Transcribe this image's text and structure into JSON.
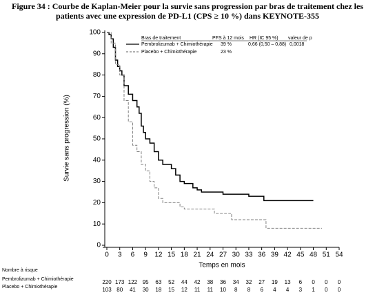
{
  "chart_data": {
    "type": "step",
    "title": [
      "Figure 34 : Courbe de Kaplan-Meier pour la survie sans progression par bras de traitement chez les",
      "patients avec une expression de PD-L1 (CPS ≥ 10 %) dans KEYNOTE-355"
    ],
    "x_label": "Temps en mois",
    "y_label": "Survie sans progression (%)",
    "xlim": [
      0,
      54
    ],
    "xticks": [
      0,
      3,
      6,
      9,
      12,
      15,
      18,
      21,
      24,
      27,
      30,
      33,
      36,
      39,
      42,
      45,
      48,
      51,
      54
    ],
    "ylim": [
      0,
      100
    ],
    "yticks": [
      0,
      10,
      20,
      30,
      40,
      50,
      60,
      70,
      80,
      90,
      100
    ],
    "legend": {
      "headers": [
        "Bras de traitement",
        "PFS à 12 mois",
        "HR (IC 95 %)",
        "valeur de p"
      ]
    },
    "series": [
      {
        "name": "Pembrolizumab + Chimiothérapie",
        "color": "#000000",
        "line_style": "solid",
        "pfs_12m": "39 %",
        "hr": "0,66 (0,50 – 0,88)",
        "p": "0,0018",
        "x": [
          0,
          0.5,
          1,
          1.5,
          2,
          2.5,
          3,
          3.5,
          4,
          5,
          6,
          7,
          7.5,
          8,
          8.5,
          9,
          10,
          11,
          12,
          13,
          15,
          16,
          17,
          18,
          20,
          21,
          22,
          27,
          33,
          36.5,
          48
        ],
        "values": [
          100,
          99,
          97,
          93,
          87,
          84,
          82,
          80,
          75,
          71,
          68,
          65,
          62,
          56,
          53,
          50,
          48,
          44,
          40,
          38,
          36,
          33,
          30,
          29,
          27,
          26,
          25,
          24,
          23,
          21,
          21
        ]
      },
      {
        "name": "Placebo + Chimiothérapie",
        "color": "#808080",
        "line_style": "dashed",
        "pfs_12m": "23 %",
        "x": [
          0,
          1,
          2,
          3,
          4,
          5,
          6,
          7,
          8,
          9,
          10,
          11,
          12,
          13,
          17,
          18,
          25,
          29,
          37,
          50
        ],
        "values": [
          100,
          95,
          85,
          80,
          68,
          58,
          47,
          44,
          38,
          35,
          30,
          27,
          22,
          20,
          18,
          17,
          15,
          12,
          8,
          8
        ]
      }
    ],
    "risk_table": {
      "title": "Nombre à risque",
      "rows": [
        {
          "name": "Pembrolizumab + Chimiothérapie",
          "values": [
            220,
            173,
            122,
            95,
            63,
            52,
            44,
            42,
            38,
            36,
            34,
            32,
            27,
            19,
            13,
            6,
            0,
            0,
            0
          ]
        },
        {
          "name": "Placebo + Chimiothérapie",
          "values": [
            103,
            80,
            41,
            30,
            18,
            15,
            12,
            11,
            11,
            10,
            8,
            8,
            6,
            4,
            4,
            3,
            1,
            0,
            0
          ]
        }
      ]
    }
  }
}
